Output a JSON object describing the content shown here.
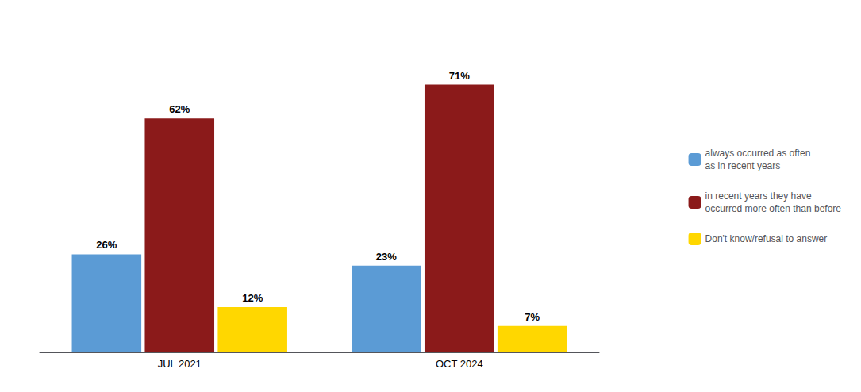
{
  "chart_data": {
    "type": "bar",
    "categories": [
      "JUL 2021",
      "OCT 2024"
    ],
    "series": [
      {
        "name": "always occurred as often\nas in recent years",
        "color": "#5B9BD5",
        "values": [
          26,
          23
        ],
        "value_labels": [
          "26%",
          "23%"
        ]
      },
      {
        "name": "in recent years they have\noccurred more often than before",
        "color": "#8B1A1A",
        "values": [
          62,
          71
        ],
        "value_labels": [
          "62%",
          "71%"
        ]
      },
      {
        "name": "Don't know/refusal to answer",
        "color": "#FFD700",
        "values": [
          12,
          7
        ],
        "value_labels": [
          "12%",
          "7%"
        ]
      }
    ],
    "ylim": [
      0,
      85
    ],
    "data_labels": true,
    "tick_labels": "x",
    "grid": false,
    "legend": "right"
  }
}
